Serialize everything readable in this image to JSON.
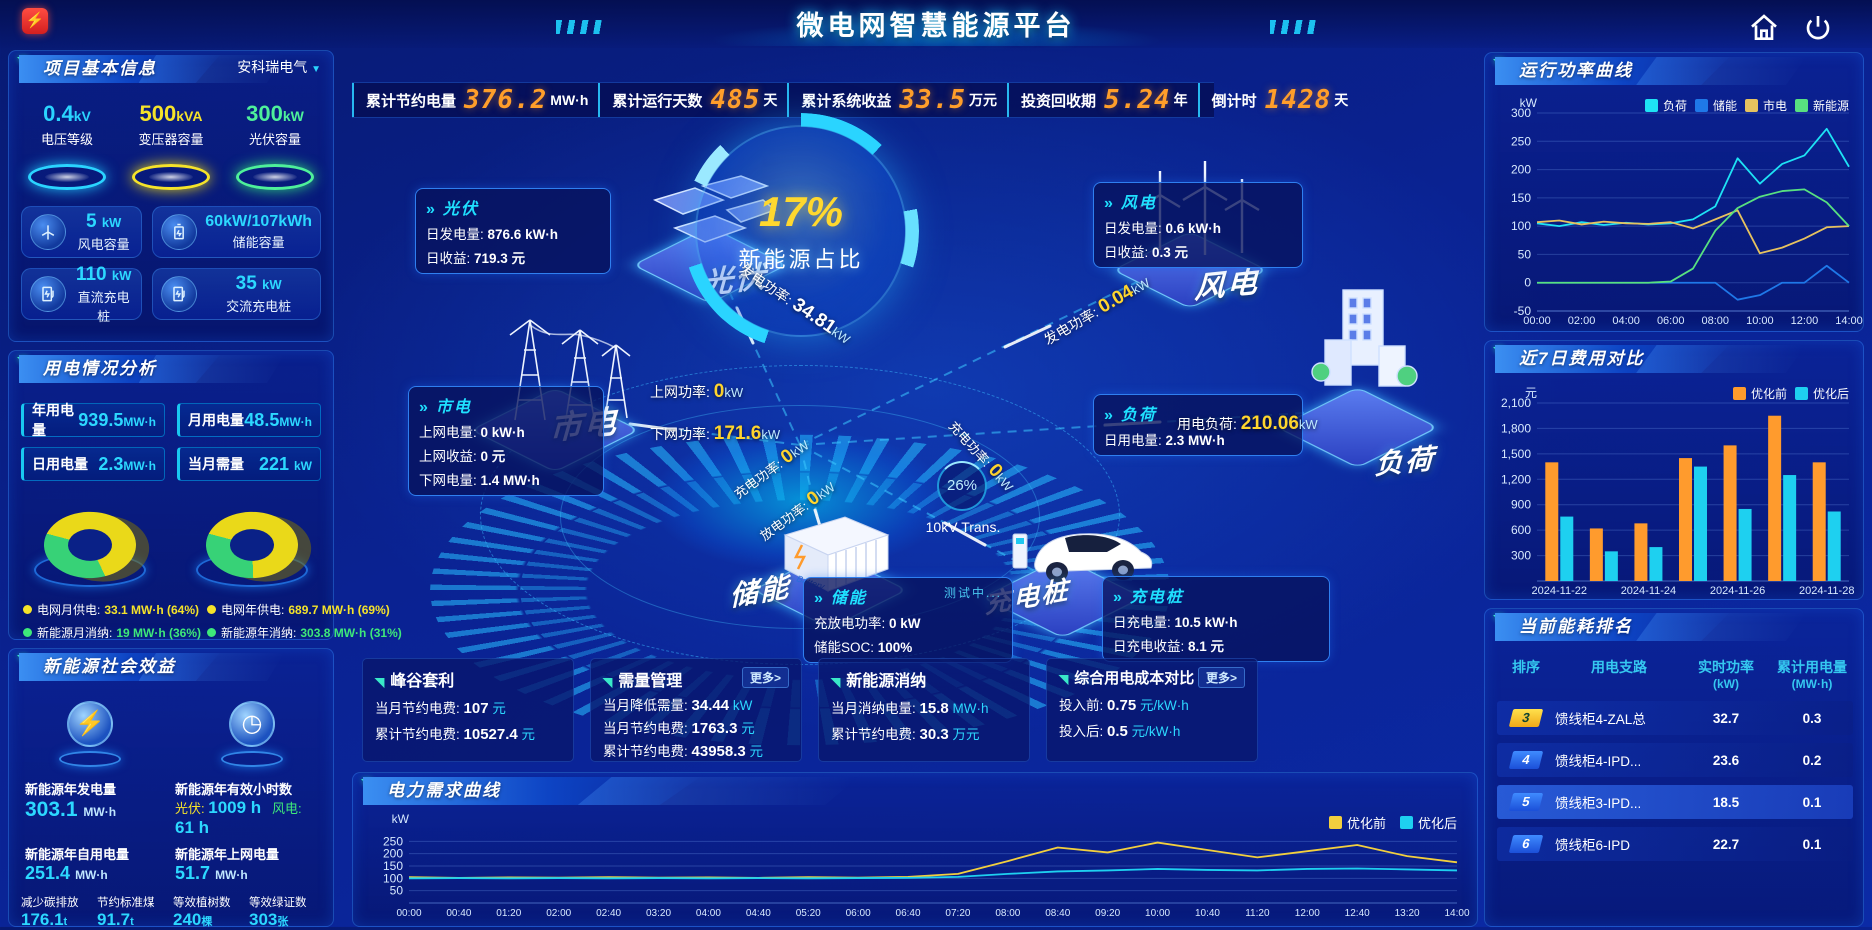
{
  "app": {
    "title": "微电网智慧能源平台",
    "brand_glyph": "⚡"
  },
  "stats_bar": {
    "items": [
      {
        "label": "累计节约电量",
        "value": "376.2",
        "unit": "MW·h"
      },
      {
        "label": "累计运行天数",
        "value": "485",
        "unit": "天"
      },
      {
        "label": "累计系统收益",
        "value": "33.5",
        "unit": "万元"
      },
      {
        "label": "投资回收期",
        "value": "5.24",
        "unit": "年"
      },
      {
        "label": "倒计时",
        "value": "1428",
        "unit": "天"
      }
    ]
  },
  "project_info": {
    "title": "项目基本信息",
    "company": "安科瑞电气",
    "dropdown_icon": "▼",
    "circles": [
      {
        "value": "0.4",
        "unit": "kV",
        "label": "电压等级",
        "color": "#2ad4ff"
      },
      {
        "value": "500",
        "unit": "kVA",
        "label": "变压器容量",
        "color": "#f5e32a"
      },
      {
        "value": "300",
        "unit": "kW",
        "label": "光伏容量",
        "color": "#4ef09a"
      }
    ],
    "chips": [
      {
        "value": "5",
        "unit": "kW",
        "label": "风电容量",
        "icon": "wind-turbine-icon"
      },
      {
        "value": "60kW/107kWh",
        "unit": "",
        "label": "储能容量",
        "icon": "battery-icon"
      },
      {
        "value": "110",
        "unit": "kW",
        "label": "直流充电桩",
        "icon": "charger-icon"
      },
      {
        "value": "35",
        "unit": "kW",
        "label": "交流充电桩",
        "icon": "charger-icon"
      }
    ]
  },
  "usage_analysis": {
    "title": "用电情况分析",
    "boxes": [
      {
        "label": "年用电量",
        "value": "939.5",
        "unit": "MW·h"
      },
      {
        "label": "月用电量",
        "value": "48.5",
        "unit": "MW·h"
      },
      {
        "label": "日用电量",
        "value": "2.3",
        "unit": "MW·h"
      },
      {
        "label": "当月需量",
        "value": "221",
        "unit": "kW"
      }
    ],
    "donut_month": {
      "grid": 64,
      "renewable": 36
    },
    "donut_year": {
      "grid": 69,
      "renewable": 31
    },
    "legends": [
      {
        "label": "电网月供电:",
        "value": "33.1 MW·h (64%)",
        "color": "#f5e32a"
      },
      {
        "label": "电网年供电:",
        "value": "689.7 MW·h (69%)",
        "color": "#f5e32a"
      },
      {
        "label": "新能源月消纳:",
        "value": "19 MW·h (36%)",
        "color": "#3ee87a"
      },
      {
        "label": "新能源年消纳:",
        "value": "303.8 MW·h (31%)",
        "color": "#3ee87a"
      }
    ]
  },
  "social_benefit": {
    "title": "新能源社会效益",
    "gen_label": "新能源年发电量",
    "gen_value": "303.1",
    "gen_unit": "MW·h",
    "hours_label": "新能源年有效小时数",
    "pv_label": "光伏:",
    "pv_value": "1009 h",
    "wind_label": "风电:",
    "wind_value": "61 h",
    "items": [
      {
        "label": "新能源年自用电量",
        "value": "251.4",
        "unit": "MW·h"
      },
      {
        "label": "新能源年上网电量",
        "value": "51.7",
        "unit": "MW·h"
      },
      {
        "label": "减少碳排放",
        "value": "176.1",
        "unit": "t"
      },
      {
        "label": "节约标准煤",
        "value": "91.7",
        "unit": "t"
      },
      {
        "label": "等效植树数",
        "value": "240",
        "unit": "棵"
      },
      {
        "label": "等效绿证数",
        "value": "303",
        "unit": "张"
      }
    ]
  },
  "center": {
    "percent": "17%",
    "percent_label": "新能源占比",
    "chev": "»",
    "nodes": {
      "pv": "光伏",
      "wind": "风电",
      "grid": "市电",
      "load": "负荷",
      "storage": "储能",
      "charger": "充电桩"
    },
    "pv_box": {
      "title": "光伏",
      "rows": [
        [
          "日发电量:",
          "876.6 kW·h"
        ],
        [
          "日收益:",
          "719.3 元"
        ]
      ]
    },
    "wind_box": {
      "title": "风电",
      "rows": [
        [
          "日发电量:",
          "0.6 kW·h"
        ],
        [
          "日收益:",
          "0.3 元"
        ]
      ]
    },
    "grid_box": {
      "title": "市电",
      "rows": [
        [
          "上网电量:",
          "0 kW·h"
        ],
        [
          "上网收益:",
          "0 元"
        ],
        [
          "下网电量:",
          "1.4 MW·h"
        ]
      ]
    },
    "load_box": {
      "title": "负荷",
      "rows": [
        [
          "日用电量:",
          "2.3 MW·h"
        ]
      ]
    },
    "storage_box": {
      "title": "储能",
      "note": "测试中...",
      "rows": [
        [
          "充放电功率:",
          "0 kW"
        ],
        [
          "储能SOC:",
          "100%"
        ]
      ]
    },
    "charger_box": {
      "title": "充电桩",
      "rows": [
        [
          "日充电量:",
          "10.5 kW·h"
        ],
        [
          "日充电收益:",
          "8.1 元"
        ]
      ]
    },
    "flows": {
      "gen_pv": {
        "label": "发电功率:",
        "num": "34.81",
        "unit": "kW"
      },
      "up": {
        "label": "上网功率:",
        "num": "0",
        "unit": "kW"
      },
      "down": {
        "label": "下网功率:",
        "num": "171.6",
        "unit": "kW"
      },
      "charge_st": {
        "label": "充电功率:",
        "num": "0",
        "unit": "kW"
      },
      "discharge": {
        "label": "放电功率:",
        "num": "0",
        "unit": "kW"
      },
      "gen_wind": {
        "label": "发电功率:",
        "num": "0.04",
        "unit": "kW"
      },
      "load": {
        "label": "用电负荷:",
        "num": "210.06",
        "unit": "kW"
      },
      "charge_ev": {
        "label": "充电功率:",
        "num": "0",
        "unit": "kW"
      }
    },
    "transformer": {
      "percent": "26%",
      "label": "10kV Trans."
    }
  },
  "benefit_cards": [
    {
      "title": "峰谷套利",
      "more": "",
      "rows": [
        [
          "当月节约电费:",
          "107",
          "元"
        ],
        [
          "累计节约电费:",
          "10527.4",
          "元"
        ]
      ]
    },
    {
      "title": "需量管理",
      "more": "更多>",
      "rows": [
        [
          "当月降低需量:",
          "34.44",
          "kW"
        ],
        [
          "当月节约电费:",
          "1763.3",
          "元"
        ],
        [
          "累计节约电费:",
          "43958.3",
          "元"
        ]
      ]
    },
    {
      "title": "新能源消纳",
      "more": "",
      "rows": [
        [
          "当月消纳电量:",
          "15.8",
          "MW·h"
        ],
        [
          "累计节约电费:",
          "30.3",
          "万元"
        ]
      ]
    },
    {
      "title": "综合用电成本对比",
      "more": "更多>",
      "rows": [
        [
          "投入前:",
          "0.75",
          "元/kW·h"
        ],
        [
          "投入后:",
          "0.5",
          "元/kW·h"
        ]
      ]
    }
  ],
  "right_panels": {
    "run_title": "运行功率曲线",
    "cost_title": "近7日费用对比",
    "rank_title": "当前能耗排名"
  },
  "demand_panel": {
    "title": "电力需求曲线"
  },
  "ranking": {
    "headers": [
      {
        "t": "排序",
        "u": ""
      },
      {
        "t": "用电支路",
        "u": ""
      },
      {
        "t": "实时功率",
        "u": "(kW)"
      },
      {
        "t": "累计用电量",
        "u": "(MW·h)"
      }
    ],
    "rows": [
      {
        "rank": "3",
        "branch": "馈线柜4-ZAL总",
        "power": "32.7",
        "energy": "0.3"
      },
      {
        "rank": "4",
        "branch": "馈线柜4-IPD...",
        "power": "23.6",
        "energy": "0.2"
      },
      {
        "rank": "5",
        "branch": "馈线柜3-IPD...",
        "power": "18.5",
        "energy": "0.1"
      },
      {
        "rank": "6",
        "branch": "馈线柜6-IPD",
        "power": "22.7",
        "energy": "0.1"
      }
    ]
  },
  "chart_data": [
    {
      "id": "run-chart",
      "type": "line",
      "title": "运行功率曲线",
      "ylabel": "kW",
      "x": [
        "00:00",
        "01:00",
        "02:00",
        "03:00",
        "04:00",
        "05:00",
        "06:00",
        "07:00",
        "08:00",
        "09:00",
        "10:00",
        "11:00",
        "12:00",
        "13:00",
        "14:00"
      ],
      "xtick_every": 2,
      "ylim": [
        -50,
        300
      ],
      "yticks": [
        300,
        250,
        200,
        150,
        100,
        50,
        0,
        -50
      ],
      "legend_position": "top",
      "grid": true,
      "series": [
        {
          "name": "负荷",
          "color": "#1ee3f5",
          "values": [
            105,
            100,
            107,
            102,
            106,
            103,
            105,
            112,
            135,
            220,
            175,
            210,
            225,
            272,
            205
          ]
        },
        {
          "name": "储能",
          "color": "#1f78e8",
          "values": [
            0,
            0,
            0,
            0,
            0,
            0,
            0,
            0,
            0,
            -30,
            -22,
            0,
            0,
            30,
            0
          ]
        },
        {
          "name": "市电",
          "color": "#e6c25f",
          "values": [
            107,
            110,
            103,
            108,
            105,
            104,
            107,
            96,
            112,
            128,
            52,
            62,
            78,
            98,
            100
          ]
        },
        {
          "name": "新能源",
          "color": "#58e080",
          "values": [
            0,
            0,
            0,
            0,
            0,
            0,
            2,
            25,
            92,
            132,
            152,
            162,
            165,
            142,
            100
          ]
        }
      ]
    },
    {
      "id": "cost-chart",
      "type": "bar",
      "title": "近7日费用对比",
      "ylabel": "元",
      "categories": [
        "2024-11-22",
        "2024-11-23",
        "2024-11-24",
        "2024-11-25",
        "2024-11-26",
        "2024-11-27",
        "2024-11-28"
      ],
      "xtick_every": 2,
      "ylim": [
        0,
        2100
      ],
      "yticks": [
        2100,
        1800,
        1500,
        1200,
        900,
        600,
        300
      ],
      "comma": true,
      "legend_position": "top-right",
      "grid": true,
      "series": [
        {
          "name": "优化前",
          "color": "#ff9b2d",
          "values": [
            1400,
            620,
            680,
            1450,
            1600,
            1950,
            1400
          ]
        },
        {
          "name": "优化后",
          "color": "#1ed0f0",
          "values": [
            760,
            350,
            400,
            1350,
            850,
            1250,
            820
          ]
        }
      ]
    },
    {
      "id": "demand-chart",
      "type": "line",
      "title": "电力需求曲线",
      "ylabel": "kW",
      "x": [
        "00:00",
        "00:40",
        "01:20",
        "02:00",
        "02:40",
        "03:20",
        "04:00",
        "04:40",
        "05:20",
        "06:00",
        "06:40",
        "07:20",
        "08:00",
        "08:40",
        "09:20",
        "10:00",
        "10:40",
        "11:20",
        "12:00",
        "12:40",
        "13:20",
        "14:00"
      ],
      "xtick_every": 1,
      "xfs": 10,
      "ylim": [
        0,
        300
      ],
      "yticks": [
        250,
        200,
        150,
        100,
        50
      ],
      "legend_position": "top-right",
      "grid": true,
      "series": [
        {
          "name": "优化前",
          "color": "#f2cf3e",
          "values": [
            105,
            102,
            104,
            103,
            105,
            103,
            104,
            102,
            105,
            103,
            106,
            118,
            170,
            225,
            205,
            245,
            215,
            185,
            210,
            235,
            190,
            165
          ]
        },
        {
          "name": "优化后",
          "color": "#1ed0f0",
          "values": [
            100,
            101,
            100,
            101,
            100,
            101,
            100,
            101,
            100,
            101,
            102,
            106,
            118,
            128,
            132,
            138,
            134,
            132,
            138,
            140,
            136,
            132
          ]
        }
      ]
    }
  ]
}
